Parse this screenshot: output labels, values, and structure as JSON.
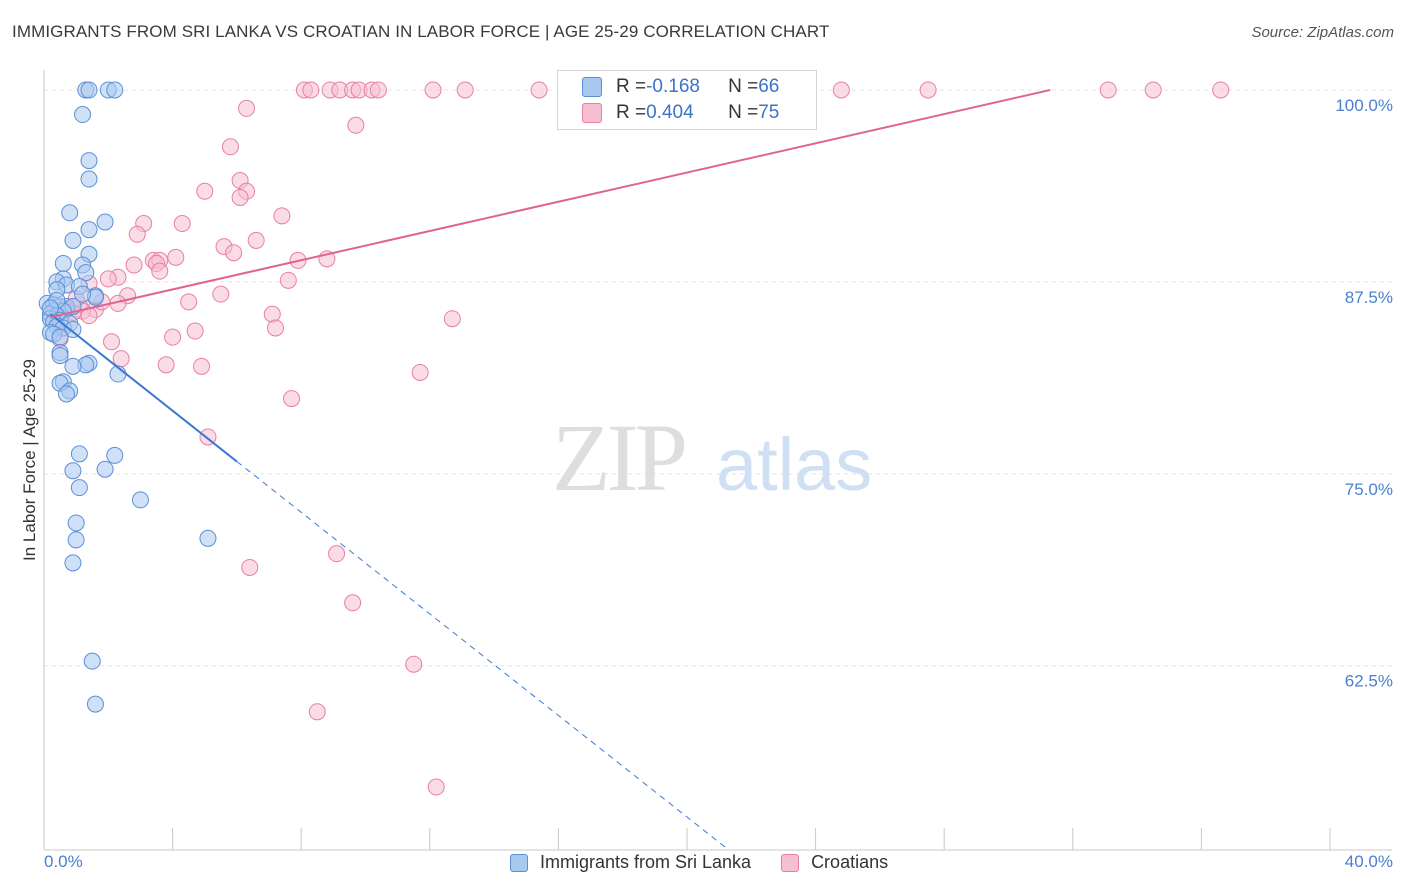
{
  "title": "IMMIGRANTS FROM SRI LANKA VS CROATIAN IN LABOR FORCE | AGE 25-29 CORRELATION CHART",
  "source": "Source: ZipAtlas.com",
  "watermark": {
    "zip": "ZIP",
    "atlas": "atlas"
  },
  "colors": {
    "blue_fill": "#a9c8f0",
    "blue_stroke": "#5b8fd6",
    "blue_line": "#3a78d4",
    "pink_fill": "#f6c0d2",
    "pink_stroke": "#e97fa2",
    "pink_line": "#e0648f",
    "tick_label": "#4a7fd0",
    "grid": "#e3e3e3"
  },
  "stats": [
    {
      "r_label": "R = ",
      "r_value": "-0.168",
      "n_label": "N = ",
      "n_value": "66",
      "series": "blue"
    },
    {
      "r_label": "R = ",
      "r_value": "0.404",
      "n_label": "N = ",
      "n_value": "75",
      "series": "pink"
    }
  ],
  "legend": [
    {
      "label": "Immigrants from Sri Lanka",
      "series": "blue"
    },
    {
      "label": "Croatians",
      "series": "pink"
    }
  ],
  "chart_data": {
    "type": "scatter",
    "title": "IMMIGRANTS FROM SRI LANKA VS CROATIAN IN LABOR FORCE | AGE 25-29 CORRELATION CHART",
    "xlabel": "",
    "ylabel": "In Labor Force | Age 25-29",
    "xlim": [
      0,
      40
    ],
    "ylim": [
      50.5,
      101.3
    ],
    "x_tick_labels": [
      "0.0%",
      "40.0%"
    ],
    "y_ticks": [
      62.5,
      75.0,
      87.5,
      100.0
    ],
    "y_tick_labels": [
      "62.5%",
      "75.0%",
      "87.5%",
      "100.0%"
    ],
    "grid": true,
    "series": [
      {
        "name": "Immigrants from Sri Lanka",
        "color": "blue",
        "points": [
          [
            1.3,
            100
          ],
          [
            1.4,
            100
          ],
          [
            2.0,
            100
          ],
          [
            2.2,
            100
          ],
          [
            1.2,
            98.4
          ],
          [
            1.4,
            95.4
          ],
          [
            1.4,
            94.2
          ],
          [
            0.8,
            92.0
          ],
          [
            1.9,
            91.4
          ],
          [
            1.4,
            90.9
          ],
          [
            0.9,
            90.2
          ],
          [
            1.4,
            89.3
          ],
          [
            0.6,
            88.7
          ],
          [
            1.2,
            88.6
          ],
          [
            1.3,
            88.1
          ],
          [
            0.6,
            87.7
          ],
          [
            0.4,
            87.5
          ],
          [
            0.7,
            87.3
          ],
          [
            1.1,
            87.2
          ],
          [
            0.4,
            87.0
          ],
          [
            1.6,
            86.6
          ],
          [
            1.6,
            86.5
          ],
          [
            0.1,
            86.1
          ],
          [
            0.3,
            86.0
          ],
          [
            0.5,
            85.9
          ],
          [
            0.7,
            85.9
          ],
          [
            0.9,
            85.9
          ],
          [
            0.3,
            85.6
          ],
          [
            0.6,
            85.6
          ],
          [
            0.2,
            85.4
          ],
          [
            0.4,
            85.3
          ],
          [
            0.2,
            85.1
          ],
          [
            0.5,
            85.0
          ],
          [
            0.3,
            84.9
          ],
          [
            0.8,
            84.8
          ],
          [
            0.4,
            84.6
          ],
          [
            0.6,
            84.5
          ],
          [
            0.9,
            84.4
          ],
          [
            0.2,
            84.2
          ],
          [
            0.3,
            84.1
          ],
          [
            0.5,
            83.9
          ],
          [
            0.5,
            82.9
          ],
          [
            0.5,
            82.7
          ],
          [
            1.4,
            82.2
          ],
          [
            1.3,
            82.1
          ],
          [
            0.9,
            82.0
          ],
          [
            2.3,
            81.5
          ],
          [
            0.6,
            81.0
          ],
          [
            0.5,
            80.9
          ],
          [
            0.8,
            80.4
          ],
          [
            0.7,
            80.2
          ],
          [
            1.1,
            76.3
          ],
          [
            2.2,
            76.2
          ],
          [
            0.9,
            75.2
          ],
          [
            1.9,
            75.3
          ],
          [
            1.1,
            74.1
          ],
          [
            3.0,
            73.3
          ],
          [
            1.0,
            71.8
          ],
          [
            1.0,
            70.7
          ],
          [
            5.1,
            70.8
          ],
          [
            0.9,
            69.2
          ],
          [
            1.5,
            62.8
          ],
          [
            1.6,
            60.0
          ],
          [
            0.4,
            86.3
          ],
          [
            1.2,
            86.7
          ],
          [
            0.2,
            85.8
          ]
        ]
      },
      {
        "name": "Croatians",
        "color": "pink",
        "points": [
          [
            8.1,
            100
          ],
          [
            8.3,
            100
          ],
          [
            8.9,
            100
          ],
          [
            9.2,
            100
          ],
          [
            9.6,
            100
          ],
          [
            9.8,
            100
          ],
          [
            10.2,
            100
          ],
          [
            10.4,
            100
          ],
          [
            12.1,
            100
          ],
          [
            13.1,
            100
          ],
          [
            15.4,
            100
          ],
          [
            19.2,
            100
          ],
          [
            20.2,
            100
          ],
          [
            24.8,
            100
          ],
          [
            27.5,
            100
          ],
          [
            33.1,
            100
          ],
          [
            34.5,
            100
          ],
          [
            36.6,
            100
          ],
          [
            6.3,
            98.8
          ],
          [
            9.7,
            97.7
          ],
          [
            5.8,
            96.3
          ],
          [
            6.1,
            94.1
          ],
          [
            6.3,
            93.4
          ],
          [
            5.0,
            93.4
          ],
          [
            6.1,
            93.0
          ],
          [
            7.4,
            91.8
          ],
          [
            3.1,
            91.3
          ],
          [
            4.3,
            91.3
          ],
          [
            2.9,
            90.6
          ],
          [
            6.6,
            90.2
          ],
          [
            5.6,
            89.8
          ],
          [
            5.9,
            89.4
          ],
          [
            4.1,
            89.1
          ],
          [
            8.8,
            89.0
          ],
          [
            7.9,
            88.9
          ],
          [
            3.4,
            88.9
          ],
          [
            3.6,
            88.9
          ],
          [
            3.5,
            88.7
          ],
          [
            2.8,
            88.6
          ],
          [
            3.6,
            88.2
          ],
          [
            2.3,
            87.8
          ],
          [
            2.0,
            87.7
          ],
          [
            7.6,
            87.6
          ],
          [
            1.4,
            87.4
          ],
          [
            5.5,
            86.7
          ],
          [
            2.6,
            86.6
          ],
          [
            4.5,
            86.2
          ],
          [
            2.3,
            86.1
          ],
          [
            1.1,
            86.0
          ],
          [
            1.6,
            85.7
          ],
          [
            1.2,
            85.6
          ],
          [
            0.9,
            85.5
          ],
          [
            7.1,
            85.4
          ],
          [
            1.4,
            85.3
          ],
          [
            12.7,
            85.1
          ],
          [
            7.2,
            84.5
          ],
          [
            4.7,
            84.3
          ],
          [
            4.0,
            83.9
          ],
          [
            2.1,
            83.6
          ],
          [
            0.5,
            83.8
          ],
          [
            2.4,
            82.5
          ],
          [
            3.8,
            82.1
          ],
          [
            4.9,
            82.0
          ],
          [
            11.7,
            81.6
          ],
          [
            7.7,
            79.9
          ],
          [
            5.1,
            77.4
          ],
          [
            9.1,
            69.8
          ],
          [
            6.4,
            68.9
          ],
          [
            9.6,
            66.6
          ],
          [
            11.5,
            62.6
          ],
          [
            8.5,
            59.5
          ],
          [
            12.2,
            54.6
          ],
          [
            1.8,
            86.2
          ],
          [
            1.0,
            86.4
          ],
          [
            0.7,
            85.7
          ]
        ]
      }
    ],
    "trend_lines": [
      {
        "series": "Immigrants from Sri Lanka",
        "solid": [
          [
            0.2,
            85.4
          ],
          [
            6.0,
            75.8
          ]
        ],
        "dashed": [
          [
            6.0,
            75.8
          ],
          [
            21.3,
            50.5
          ]
        ]
      },
      {
        "series": "Croatians",
        "solid": [
          [
            0.2,
            85.2
          ],
          [
            31.3,
            100
          ]
        ]
      }
    ]
  }
}
